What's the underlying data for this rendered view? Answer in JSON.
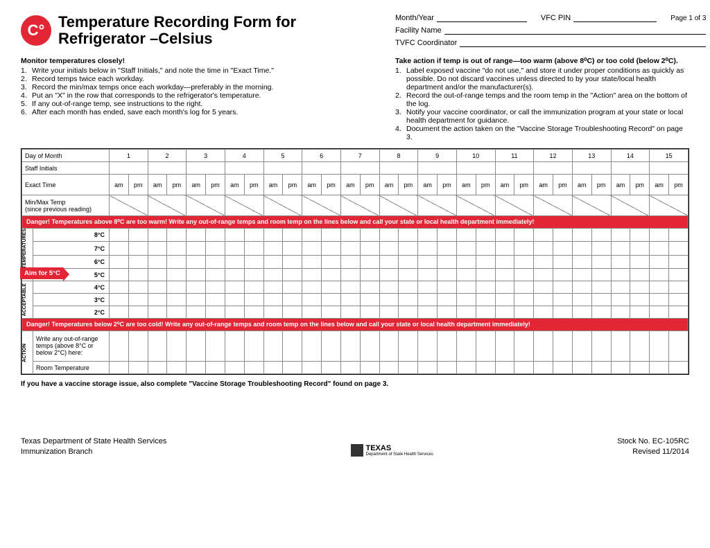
{
  "badge": "C°",
  "title": "Temperature Recording Form for Refrigerator –Celsius",
  "page_number": "Page 1 of 3",
  "header_fields": {
    "month_year": "Month/Year",
    "vfcpin": "VFC PIN",
    "facility": "Facility Name",
    "coordinator": "TVFC Coordinator"
  },
  "left_instructions": {
    "heading": "Monitor temperatures closely!",
    "items": [
      "Write your initials below in \"Staff Initials,\" and note the time in \"Exact Time.\"",
      "Record temps twice each workday.",
      "Record the min/max temps once each workday—preferably in the morning.",
      "Put an \"X\" in the row that corresponds to the refrigerator's temperature.",
      "If any out-of-range temp,  see instructions to the right.",
      "After each month has ended, save each month's log for 5 years."
    ]
  },
  "right_instructions": {
    "heading": "Take action if temp is out of range—too warm (above 8⁰C) or too cold (below 2⁰C).",
    "items": [
      "Label exposed vaccine \"do not use,\" and store it under proper conditions as quickly as possible. Do not discard vaccines unless directed to by your state/local health department and/or the manufacturer(s).",
      "Record the out-of-range temps and the room temp in the \"Action\" area on the bottom of the log.",
      "Notify your vaccine coordinator, or call the immunization program at your state or local health department for guidance.",
      "Document the action taken on the \"Vaccine Storage Troubleshooting Record\" on page 3."
    ]
  },
  "grid": {
    "row_day": "Day of Month",
    "row_initials": "Staff Initials",
    "row_exact": "Exact Time",
    "row_minmax_l1": "Min/Max Temp",
    "row_minmax_l2": "(since previous reading)",
    "days": [
      "1",
      "2",
      "3",
      "4",
      "5",
      "6",
      "7",
      "8",
      "9",
      "10",
      "11",
      "12",
      "13",
      "14",
      "15"
    ],
    "am": "am",
    "pm": "pm",
    "danger_warm": "Danger! Temperatures above 8⁰C are too warm! Write any out-of-range temps and room temp on the lines below and call your state or local health department immediately!",
    "danger_cold": "Danger! Temperatures below 2⁰C are too cold! Write any out-of-range temps and room temp on the lines below and call your state or local health department immediately!",
    "vlabel_temp": "TEMPERATURES",
    "vlabel_acc": "ACCEPTABLE",
    "vlabel_action": "ACTION",
    "temps": [
      "8°C",
      "7°C",
      "6°C",
      "5°C",
      "4°C",
      "3°C",
      "2°C"
    ],
    "aim": "Aim for 5°C",
    "action_write": "Write any out-of-range temps (above 8°C or below 2°C) here:",
    "action_room": "Room Temperature"
  },
  "footnote": "If you have a vaccine storage issue, also complete \"Vaccine Storage Troubleshooting Record\" found on page 3.",
  "footer": {
    "dept": "Texas Department of State Health Services",
    "branch": "Immunization Branch",
    "logo_text": "TEXAS",
    "logo_sub": "Department of State Health Services",
    "stock": "Stock No. EC-105RC",
    "revised": "Revised 11/2014"
  },
  "colors": {
    "accent": "#e32636",
    "border": "#888888",
    "text": "#000000",
    "background": "#ffffff"
  }
}
